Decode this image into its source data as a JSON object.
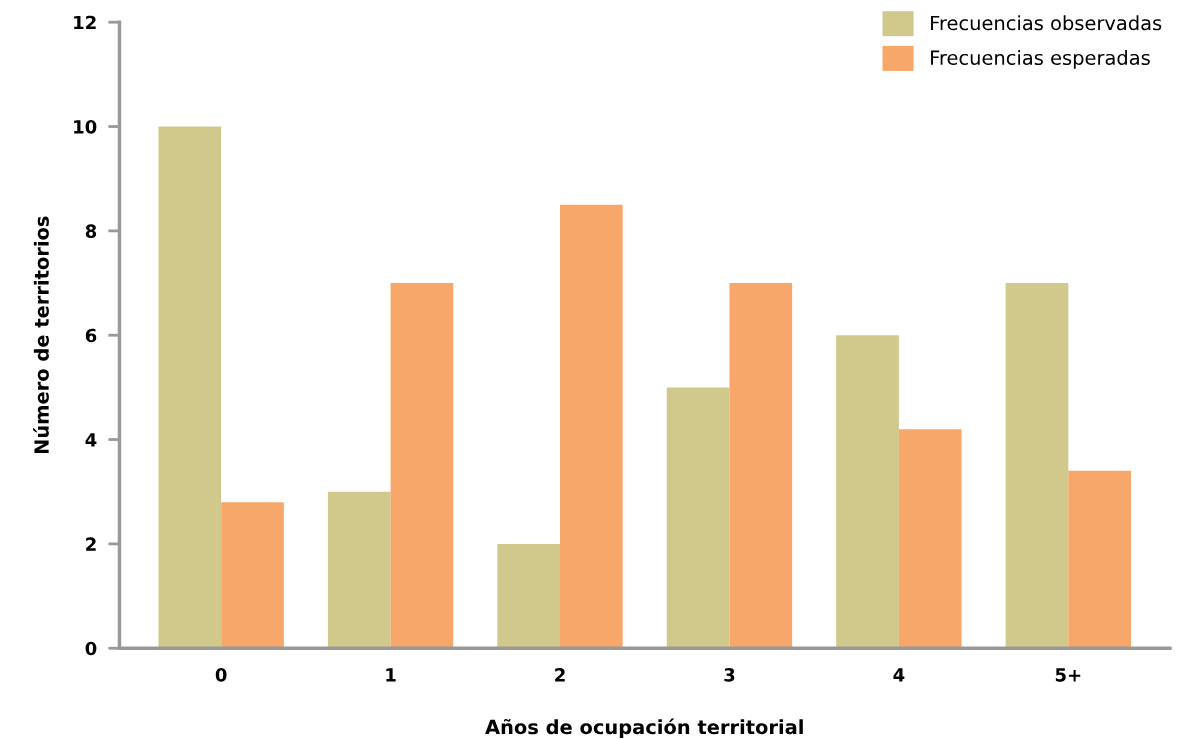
{
  "chart_data": {
    "type": "bar",
    "xlabel": "Años de ocupación territorial",
    "ylabel": "Número de territorios",
    "categories": [
      "0",
      "1",
      "2",
      "3",
      "4",
      "5+"
    ],
    "series": [
      {
        "name": "Frecuencias observadas",
        "color": "#d1c98b",
        "values": [
          10,
          3,
          2,
          5,
          6,
          7
        ]
      },
      {
        "name": "Frecuencias esperadas",
        "color": "#f7a76a",
        "values": [
          2.8,
          7,
          8.5,
          7,
          4.2,
          3.4
        ]
      }
    ],
    "ylim": [
      0,
      12
    ],
    "yticks": [
      0,
      2,
      4,
      6,
      8,
      10,
      12
    ],
    "grid": false,
    "legend": "top right"
  }
}
